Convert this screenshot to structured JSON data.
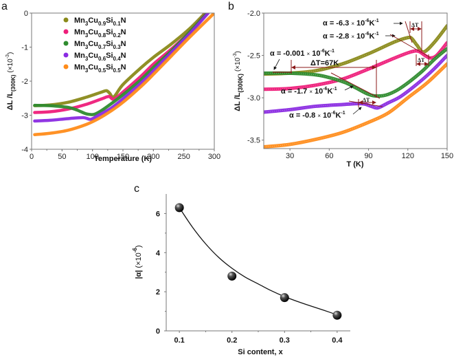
{
  "chart_data": [
    {
      "panel_label": "a",
      "type": "line",
      "title": "",
      "xlabel": "Temperature (K)",
      "ylabel": "ΔL /L(300K) (×10⁻³)",
      "ylabel_parts": {
        "main": "ΔL /L",
        "sub": "(300K)",
        "unit": "(×10",
        "exp": "-3",
        "close": ")"
      },
      "xlim": [
        0,
        300
      ],
      "ylim": [
        -4,
        0
      ],
      "xticks": [
        0,
        50,
        100,
        150,
        200,
        250,
        300
      ],
      "yticks": [
        0,
        -1,
        -2,
        -3,
        -4
      ],
      "legend_position": "top-left",
      "series": [
        {
          "name": "Mn3Cu0.9Si0.1N",
          "label": {
            "a": "Mn",
            "s1": "3",
            "b": "Cu",
            "s2": "0.9",
            "c": "Si",
            "s3": "0.1",
            "d": "N"
          },
          "color": "#8a8a1a",
          "x": [
            5,
            30,
            60,
            90,
            115,
            123,
            128,
            135,
            150,
            180,
            200,
            230,
            260,
            285
          ],
          "y": [
            -2.72,
            -2.7,
            -2.62,
            -2.47,
            -2.32,
            -2.28,
            -2.35,
            -2.46,
            -2.1,
            -1.6,
            -1.3,
            -0.9,
            -0.45,
            0
          ]
        },
        {
          "name": "Mn3Cu0.8Si0.2N",
          "label": {
            "a": "Mn",
            "s1": "3",
            "b": "Cu",
            "s2": "0.8",
            "c": "Si",
            "s3": "0.2",
            "d": "N"
          },
          "color": "#ee1e7a",
          "x": [
            5,
            30,
            60,
            90,
            115,
            127,
            135,
            150,
            180,
            200,
            230,
            260,
            287
          ],
          "y": [
            -2.92,
            -2.9,
            -2.82,
            -2.68,
            -2.52,
            -2.45,
            -2.53,
            -2.32,
            -1.85,
            -1.5,
            -1.05,
            -0.55,
            0
          ]
        },
        {
          "name": "Mn3Cu0.7Si0.3N",
          "label": {
            "a": "Mn",
            "s1": "3",
            "b": "Cu",
            "s2": "0.7",
            "c": "Si",
            "s3": "0.3",
            "d": "N"
          },
          "color": "#2e8b2e",
          "x": [
            5,
            30,
            60,
            75,
            88,
            97,
            105,
            120,
            150,
            180,
            200,
            230,
            260,
            288
          ],
          "y": [
            -2.71,
            -2.72,
            -2.77,
            -2.85,
            -2.95,
            -2.98,
            -2.96,
            -2.8,
            -2.4,
            -1.95,
            -1.6,
            -1.1,
            -0.55,
            0
          ]
        },
        {
          "name": "Mn3Cu0.6Si0.4N",
          "label": {
            "a": "Mn",
            "s1": "3",
            "b": "Cu",
            "s2": "0.6",
            "c": "Si",
            "s3": "0.4",
            "d": "N"
          },
          "color": "#8a2be2",
          "x": [
            5,
            30,
            60,
            85,
            97,
            110,
            130,
            150,
            180,
            200,
            230,
            260,
            290
          ],
          "y": [
            -3.17,
            -3.15,
            -3.1,
            -3.07,
            -3.12,
            -3.0,
            -2.8,
            -2.52,
            -2.05,
            -1.7,
            -1.15,
            -0.6,
            0
          ]
        },
        {
          "name": "Mn3Cu0.5Si0.5N",
          "label": {
            "a": "Mn",
            "s1": "3",
            "b": "Cu",
            "s2": "0.5",
            "c": "Si",
            "s3": "0.5",
            "d": "N"
          },
          "color": "#ff8c1a",
          "x": [
            5,
            30,
            60,
            90,
            110,
            130,
            150,
            180,
            200,
            230,
            260,
            300
          ],
          "y": [
            -3.57,
            -3.53,
            -3.44,
            -3.27,
            -3.1,
            -2.88,
            -2.62,
            -2.15,
            -1.8,
            -1.25,
            -0.7,
            0
          ]
        }
      ]
    },
    {
      "panel_label": "b",
      "type": "line",
      "title": "",
      "xlabel": "T (K)",
      "ylabel": "ΔL /L(300K) (×10⁻³)",
      "ylabel_parts": {
        "main": "ΔL /L",
        "sub": "(300K)",
        "unit": "(×10",
        "exp": "-3",
        "close": ")"
      },
      "xlim": [
        10,
        150
      ],
      "ylim": [
        -3.6,
        -2.0
      ],
      "xticks": [
        30,
        60,
        90,
        120,
        150
      ],
      "yticks": [
        -2.0,
        -2.5,
        -3.0,
        -3.5
      ],
      "series": [
        {
          "name": "Mn3Cu0.9Si0.1N",
          "color": "#8a8a1a",
          "x": [
            10,
            30,
            50,
            70,
            90,
            110,
            120,
            123,
            127,
            132,
            140,
            150
          ],
          "y": [
            -2.72,
            -2.71,
            -2.68,
            -2.6,
            -2.48,
            -2.34,
            -2.29,
            -2.3,
            -2.38,
            -2.46,
            -2.35,
            -2.15
          ]
        },
        {
          "name": "Mn3Cu0.8Si0.2N",
          "color": "#ee1e7a",
          "x": [
            10,
            30,
            50,
            70,
            90,
            110,
            122,
            128,
            133,
            137,
            142,
            150
          ],
          "y": [
            -2.9,
            -2.89,
            -2.85,
            -2.78,
            -2.66,
            -2.53,
            -2.46,
            -2.45,
            -2.5,
            -2.53,
            -2.5,
            -2.35
          ]
        },
        {
          "name": "Mn3Cu0.7Si0.3N",
          "color": "#2e8b2e",
          "x": [
            10,
            30,
            50,
            62,
            72,
            80,
            90,
            97,
            105,
            115,
            130,
            140,
            150
          ],
          "y": [
            -2.71,
            -2.71,
            -2.73,
            -2.77,
            -2.82,
            -2.88,
            -2.96,
            -2.98,
            -2.96,
            -2.88,
            -2.7,
            -2.55,
            -2.42
          ]
        },
        {
          "name": "Mn3Cu0.6Si0.4N",
          "color": "#8a2be2",
          "x": [
            10,
            30,
            50,
            70,
            85,
            92,
            97,
            105,
            115,
            130,
            140,
            150
          ],
          "y": [
            -3.17,
            -3.14,
            -3.1,
            -3.08,
            -3.07,
            -3.1,
            -3.12,
            -3.06,
            -2.98,
            -2.8,
            -2.66,
            -2.5
          ]
        },
        {
          "name": "Mn3Cu0.5Si0.5N",
          "color": "#ff8c1a",
          "x": [
            10,
            30,
            50,
            70,
            90,
            105,
            120,
            135,
            150
          ],
          "y": [
            -3.58,
            -3.55,
            -3.49,
            -3.41,
            -3.29,
            -3.18,
            -3.0,
            -2.82,
            -2.6
          ]
        }
      ],
      "annotations": {
        "alpha_01": {
          "prefix": "α = -6.3 ",
          "times": "×",
          "base": " 10",
          "exp": "-6",
          "unit": "K",
          "uexp": "-1",
          "value": -6.3
        },
        "alpha_02": {
          "prefix": "α = -2.8 ",
          "times": "×",
          "base": " 10",
          "exp": "-6",
          "unit": "K",
          "uexp": "-1",
          "value": -2.8
        },
        "alpha_03": {
          "prefix": "α = -1.7 ",
          "times": "×",
          "base": " 10",
          "exp": "-6",
          "unit": "K",
          "uexp": "-1",
          "value": -1.7
        },
        "alpha_04": {
          "prefix": "α = -0.8 ",
          "times": "×",
          "base": " 10",
          "exp": "-6",
          "unit": "K",
          "uexp": "-1",
          "value": -0.8
        },
        "alpha_00": {
          "prefix": "α = -0.001 ",
          "times": "×",
          "base": " 10",
          "exp": "-6",
          "unit": "K",
          "uexp": "-1",
          "value": -0.001
        },
        "delta_t_big": "ΔT=67K",
        "delta_t": "ΔT",
        "line_color": "#8b1a1a"
      }
    },
    {
      "panel_label": "c",
      "type": "scatter",
      "title": "",
      "xlabel": "Si content, x",
      "ylabel_parts": {
        "main": "|α| ",
        "unit": "(×10",
        "exp": "-6",
        "close": ")"
      },
      "xlim": [
        0.075,
        0.425
      ],
      "ylim": [
        0,
        7
      ],
      "xticks": [
        0.1,
        0.2,
        0.3,
        0.4
      ],
      "xtick_labels": [
        "0.1",
        "0.2",
        "0.3",
        "0.4"
      ],
      "yticks": [
        0,
        2,
        4,
        6
      ],
      "x": [
        0.1,
        0.2,
        0.3,
        0.4
      ],
      "y": [
        6.3,
        2.8,
        1.7,
        0.8
      ],
      "fit_curve": {
        "x": [
          0.1,
          0.125,
          0.15,
          0.175,
          0.2,
          0.225,
          0.25,
          0.275,
          0.3,
          0.325,
          0.35,
          0.375,
          0.4
        ],
        "y": [
          6.3,
          5.3,
          4.45,
          3.75,
          3.2,
          2.75,
          2.4,
          2.05,
          1.75,
          1.5,
          1.27,
          1.05,
          0.82
        ]
      }
    }
  ]
}
